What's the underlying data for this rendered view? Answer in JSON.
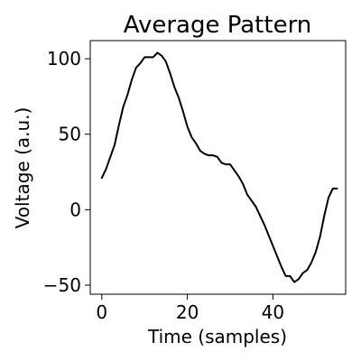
{
  "chart_data": {
    "type": "line",
    "title": "Average Pattern",
    "xlabel": "Time (samples)",
    "ylabel": "Voltage (a.u.)",
    "xlim": [
      -2.7,
      57.0
    ],
    "ylim": [
      -56,
      112
    ],
    "xticks": [
      0,
      20,
      40
    ],
    "yticks": [
      -50,
      0,
      50,
      100
    ],
    "grid": false,
    "legend": "none",
    "series": [
      {
        "color": "#000000",
        "x": [
          0,
          1,
          2,
          3,
          4,
          5,
          6,
          7,
          8,
          9,
          10,
          11,
          12,
          13,
          14,
          15,
          16,
          17,
          18,
          19,
          20,
          21,
          22,
          23,
          24,
          25,
          26,
          27,
          28,
          29,
          30,
          31,
          32,
          33,
          34,
          35,
          36,
          37,
          38,
          39,
          40,
          41,
          42,
          43,
          44,
          45,
          46,
          47,
          48,
          49,
          50,
          51,
          52,
          53,
          54,
          55
        ],
        "y": [
          21,
          27,
          35,
          43,
          56,
          68,
          76,
          86,
          94,
          97,
          101,
          101,
          101,
          104,
          102,
          98,
          90,
          81,
          74,
          65,
          55,
          48,
          44,
          39,
          37,
          36,
          36,
          35,
          31,
          30,
          30,
          26,
          22,
          17,
          10,
          6,
          2,
          -4,
          -10,
          -17,
          -24,
          -31,
          -38,
          -44,
          -44,
          -48,
          -46,
          -42,
          -40,
          -35,
          -28,
          -18,
          -4,
          8,
          14,
          14
        ]
      }
    ]
  }
}
